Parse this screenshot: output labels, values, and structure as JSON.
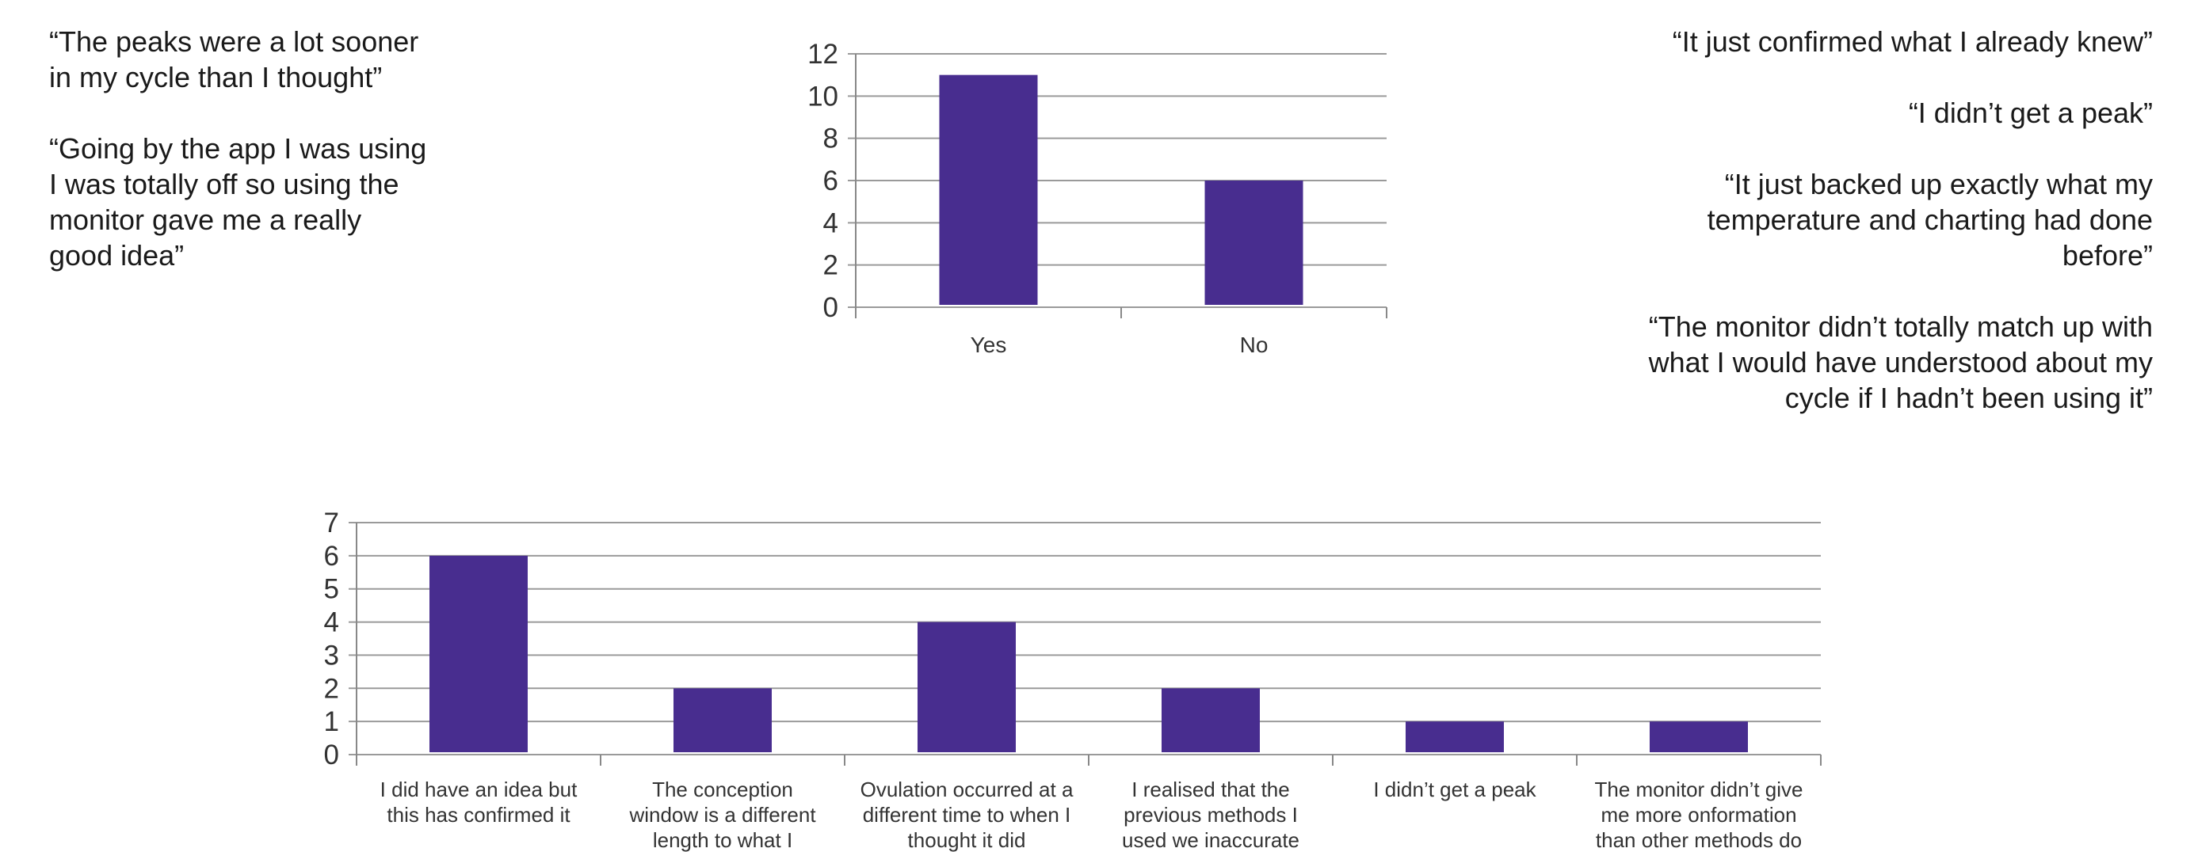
{
  "left_quotes": [
    "“The peaks were a lot sooner in my cycle than I thought”",
    "“Going by the app I was using I was totally off so using the monitor gave me a really good idea”"
  ],
  "right_quotes": [
    "“It just confirmed what I already knew”",
    "“I didn’t get a peak”",
    "“It just backed up exactly what my temperature and charting had done before”",
    "“The monitor didn’t totally match up with what I would have understood about my cycle if I hadn’t been using it”"
  ],
  "colors": {
    "bar": "#482d8f",
    "grid": "#9a9a9a",
    "axis": "#888888",
    "text": "#333333"
  },
  "chart_data": [
    {
      "type": "bar",
      "categories": [
        "Yes",
        "No"
      ],
      "values": [
        11,
        6
      ],
      "ylim": [
        0,
        12
      ],
      "yticks": [
        0,
        2,
        4,
        6,
        8,
        10,
        12
      ],
      "title": "",
      "xlabel": "",
      "ylabel": "",
      "grid": true
    },
    {
      "type": "bar",
      "categories": [
        [
          "I did have an idea but",
          "this has confirmed it"
        ],
        [
          "The conception",
          "window is a different",
          "length to what I"
        ],
        [
          "Ovulation occurred at a",
          "different time to when I",
          "thought it did"
        ],
        [
          "I realised that the",
          "previous methods I",
          "used we inaccurate"
        ],
        [
          "I didn’t get a peak"
        ],
        [
          "The monitor didn’t give",
          "me more onformation",
          "than other methods do"
        ]
      ],
      "values": [
        6,
        2,
        4,
        2,
        1,
        1
      ],
      "ylim": [
        0,
        7
      ],
      "yticks": [
        0,
        1,
        2,
        3,
        4,
        5,
        6,
        7
      ],
      "title": "",
      "xlabel": "",
      "ylabel": "",
      "grid": true
    }
  ]
}
